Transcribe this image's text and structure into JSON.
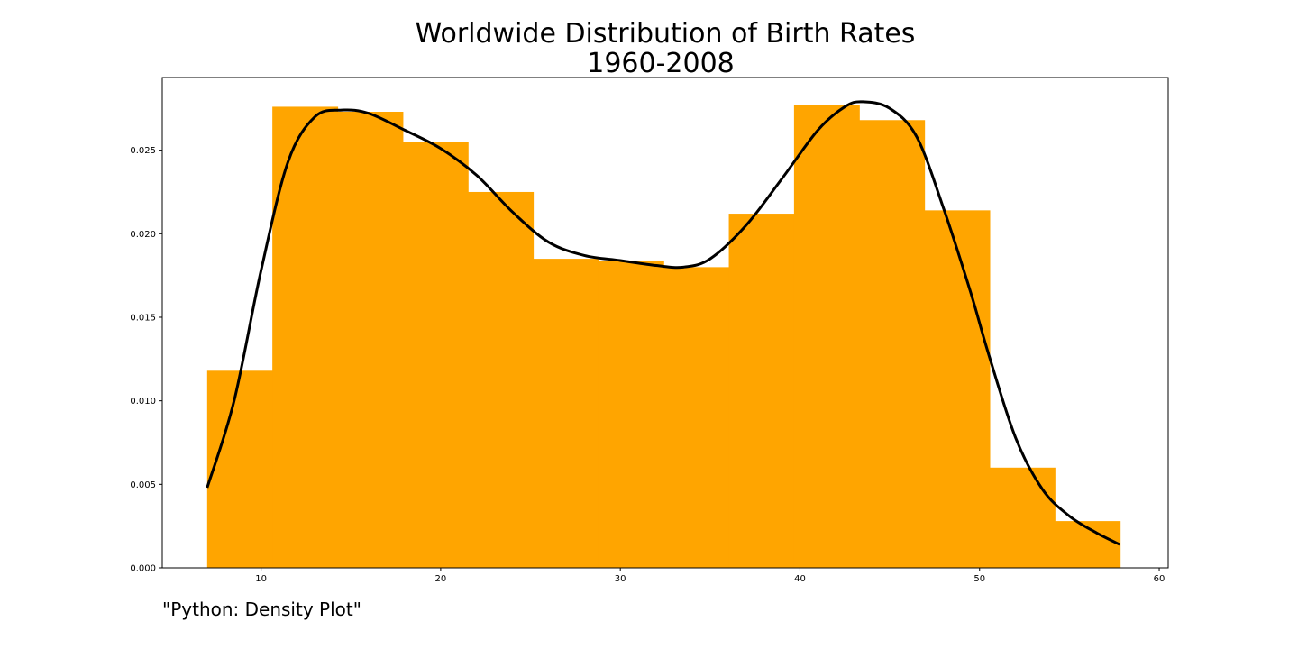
{
  "chart_data": {
    "type": "bar",
    "title_lines": [
      "Worldwide Distribution of Birth Rates",
      "1960-2008"
    ],
    "xlabel": "",
    "ylabel": "",
    "xlim": [
      4.5,
      60.5
    ],
    "ylim": [
      0,
      0.02935
    ],
    "x_ticks": [
      10,
      20,
      30,
      40,
      50,
      60
    ],
    "y_ticks": [
      0.0,
      0.005,
      0.01,
      0.015,
      0.02,
      0.025
    ],
    "x_tick_labels": [
      "10",
      "20",
      "30",
      "40",
      "50",
      "60"
    ],
    "y_tick_labels": [
      "0.000",
      "0.005",
      "0.010",
      "0.015",
      "0.020",
      "0.025"
    ],
    "grid": false,
    "bar_color": "#ffa500",
    "line_color": "#000000",
    "histogram": {
      "bin_edges": [
        7.0,
        10.63,
        14.26,
        17.89,
        21.52,
        25.15,
        28.78,
        32.41,
        36.04,
        39.67,
        43.3,
        46.93,
        50.56,
        54.19,
        57.82
      ],
      "densities": [
        0.0118,
        0.0276,
        0.0273,
        0.0255,
        0.0225,
        0.0185,
        0.0184,
        0.018,
        0.0212,
        0.0277,
        0.0268,
        0.0214,
        0.006,
        0.0028
      ]
    },
    "density_curve": {
      "x": [
        7.0,
        8.5,
        10.0,
        11.5,
        13.0,
        14.5,
        16.0,
        18.0,
        20.0,
        22.0,
        24.0,
        26.0,
        28.0,
        30.0,
        32.0,
        33.5,
        35.0,
        37.0,
        39.0,
        41.0,
        42.5,
        43.5,
        45.0,
        46.5,
        48.0,
        49.5,
        50.5,
        52.0,
        53.5,
        55.0,
        56.5,
        57.8
      ],
      "y": [
        0.0048,
        0.01,
        0.0178,
        0.0243,
        0.027,
        0.0274,
        0.0272,
        0.0262,
        0.0251,
        0.0235,
        0.0213,
        0.0195,
        0.0187,
        0.0184,
        0.0181,
        0.018,
        0.0185,
        0.0205,
        0.0233,
        0.0262,
        0.0276,
        0.0279,
        0.0275,
        0.0258,
        0.0215,
        0.0165,
        0.0128,
        0.0078,
        0.0047,
        0.0031,
        0.0021,
        0.0014
      ]
    }
  },
  "caption": "\"Python: Density Plot\""
}
